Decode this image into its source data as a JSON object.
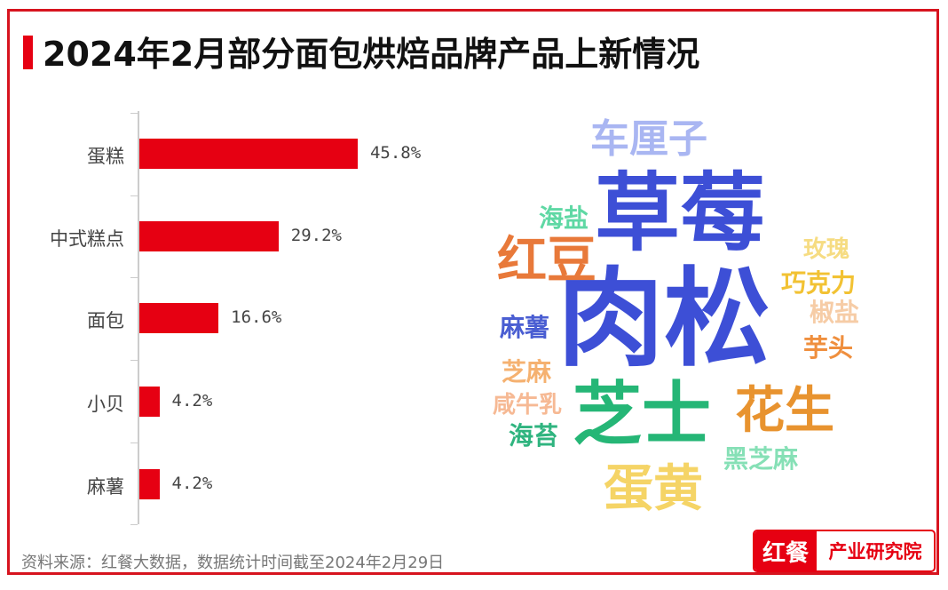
{
  "title": "2024年2月部分面包烘焙品牌产品上新情况",
  "chart_data": {
    "type": "bar",
    "orientation": "horizontal",
    "categories": [
      "蛋糕",
      "中式糕点",
      "面包",
      "小贝",
      "麻薯"
    ],
    "values": [
      45.8,
      29.2,
      16.6,
      4.2,
      4.2
    ],
    "labels": [
      "45.8%",
      "29.2%",
      "16.6%",
      "4.2%",
      "4.2%"
    ],
    "bar_color": "#e60012",
    "grid": false
  },
  "wordcloud": [
    {
      "text": "车厘子",
      "color": "#a9b6f2"
    },
    {
      "text": "草莓",
      "color": "#3d4fd6"
    },
    {
      "text": "海盐",
      "color": "#5fd8a4"
    },
    {
      "text": "红豆",
      "color": "#e8793a"
    },
    {
      "text": "玫瑰",
      "color": "#f6dc82"
    },
    {
      "text": "巧克力",
      "color": "#f2c233"
    },
    {
      "text": "肉松",
      "color": "#3d4fd6"
    },
    {
      "text": "椒盐",
      "color": "#f6cca6"
    },
    {
      "text": "麻薯",
      "color": "#4a5ed2"
    },
    {
      "text": "芋头",
      "color": "#ef8f3e"
    },
    {
      "text": "芝麻",
      "color": "#f5b170"
    },
    {
      "text": "咸牛乳",
      "color": "#f6b994"
    },
    {
      "text": "芝士",
      "color": "#25b676"
    },
    {
      "text": "花生",
      "color": "#e8932f"
    },
    {
      "text": "海苔",
      "color": "#2fb47f"
    },
    {
      "text": "黑芝麻",
      "color": "#86e0b6"
    },
    {
      "text": "蛋黄",
      "color": "#f5d466"
    }
  ],
  "source": "资料来源：红餐大数据，数据统计时间截至2024年2月29日",
  "logo": {
    "a": "红餐",
    "b": "产业研究院"
  }
}
